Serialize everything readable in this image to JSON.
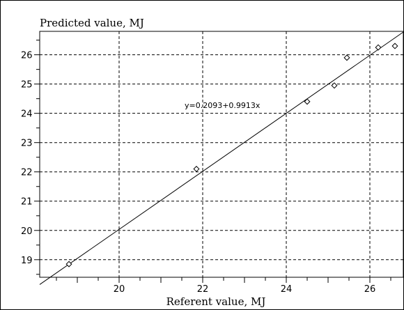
{
  "chart_data": {
    "type": "scatter",
    "title": "",
    "xlabel": "Referent value, MJ",
    "ylabel": "Predicted value, MJ",
    "xlim": [
      18.1,
      26.8
    ],
    "ylim": [
      18.4,
      26.8
    ],
    "x_ticks": [
      20,
      22,
      24,
      26
    ],
    "y_ticks": [
      19,
      20,
      21,
      22,
      23,
      24,
      25,
      26
    ],
    "grid": true,
    "equation_label": "y=0.2093+0.9913x",
    "fit": {
      "intercept": 0.2093,
      "slope": 0.9913
    },
    "points": [
      {
        "x": 18.8,
        "y": 18.85
      },
      {
        "x": 21.85,
        "y": 22.1
      },
      {
        "x": 24.5,
        "y": 24.4
      },
      {
        "x": 25.15,
        "y": 24.95
      },
      {
        "x": 25.45,
        "y": 25.9
      },
      {
        "x": 26.2,
        "y": 26.25
      },
      {
        "x": 26.6,
        "y": 26.3
      }
    ]
  }
}
